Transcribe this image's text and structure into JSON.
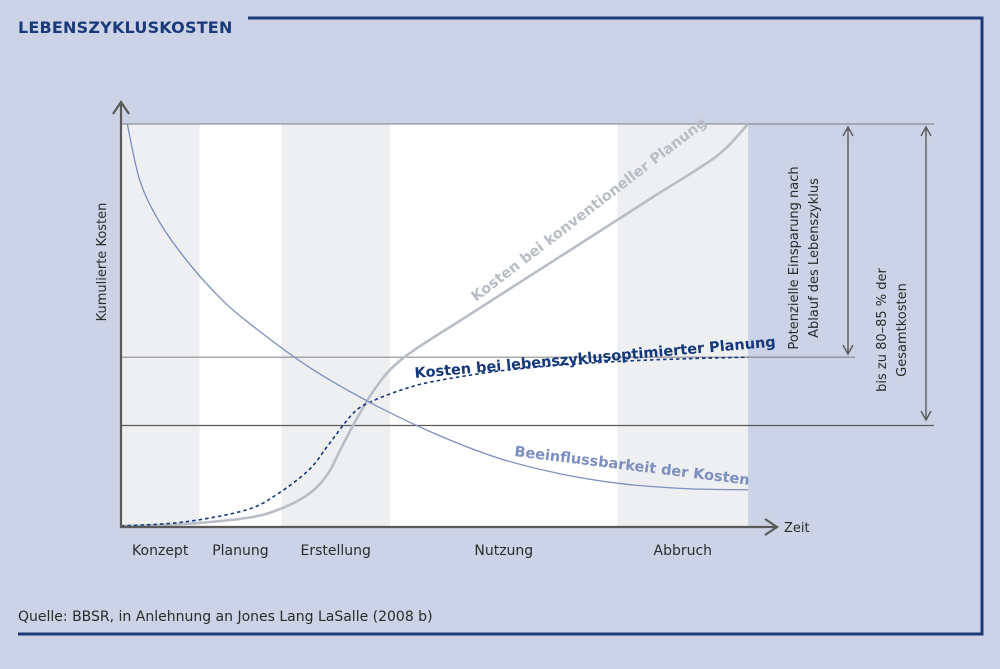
{
  "header": {
    "title": "LEBENSZYKLUSKOSTEN"
  },
  "source": "Quelle: BBSR, in Anlehnung an Jones Lang LaSalle (2008 b)",
  "colors": {
    "background": "#ccd3e6",
    "frame": "#1b3a7a",
    "plot_gray": "#eeeff1",
    "plot_white": "#ffffff",
    "conventional": "#b9bec6",
    "optimized": "#14387a",
    "influence": "#7d8fc0",
    "axis": "#5a5a5a"
  },
  "chart_data": {
    "type": "line",
    "title": "LEBENSZYKLUSKOSTEN",
    "xlabel": "Zeit",
    "ylabel": "Kumulierte Kosten",
    "xlim": [
      0,
      100
    ],
    "ylim": [
      0,
      100
    ],
    "grid": false,
    "categories": [
      "Konzept",
      "Planung",
      "Erstellung",
      "Nutzung",
      "Abbruch"
    ],
    "phase_bounds": [
      0,
      12.5,
      25.6,
      42.9,
      79.2,
      100
    ],
    "reference_levels": [
      100,
      25,
      42
    ],
    "series": [
      {
        "name": "Kosten bei konventioneller Planung",
        "style": "solid-gray",
        "x": [
          0,
          10,
          20,
          25,
          30,
          33,
          35,
          37,
          40,
          43,
          47,
          55,
          65,
          75,
          85,
          95,
          100
        ],
        "y": [
          0,
          0.5,
          2,
          4,
          8,
          13,
          19,
          25,
          33,
          39,
          44,
          52,
          62,
          72,
          82,
          92,
          100
        ]
      },
      {
        "name": "Kosten bei lebenszyklusoptimierter Planung",
        "style": "dashed-navy",
        "x": [
          0,
          10,
          20,
          25,
          30,
          33,
          37,
          40,
          45,
          50,
          60,
          70,
          80,
          90,
          100
        ],
        "y": [
          0,
          1,
          4,
          8,
          14,
          20,
          28,
          31,
          34,
          36,
          38.5,
          40,
          41,
          41.6,
          42
        ]
      },
      {
        "name": "Beeinflussbarkeit der Kosten",
        "style": "solid-blue",
        "x": [
          1,
          3,
          6,
          10,
          15,
          20,
          30,
          40,
          50,
          60,
          70,
          80,
          90,
          100
        ],
        "y": [
          100,
          86,
          76,
          67,
          58,
          51,
          39.5,
          30.5,
          23,
          17,
          13,
          10.5,
          9.3,
          9
        ]
      }
    ],
    "annotations": {
      "savings": [
        "Potenzielle Einsparung nach",
        "Ablauf des Lebenszyklus"
      ],
      "total": [
        "bis zu 80–85 % der",
        "Gesamtkosten"
      ]
    }
  }
}
